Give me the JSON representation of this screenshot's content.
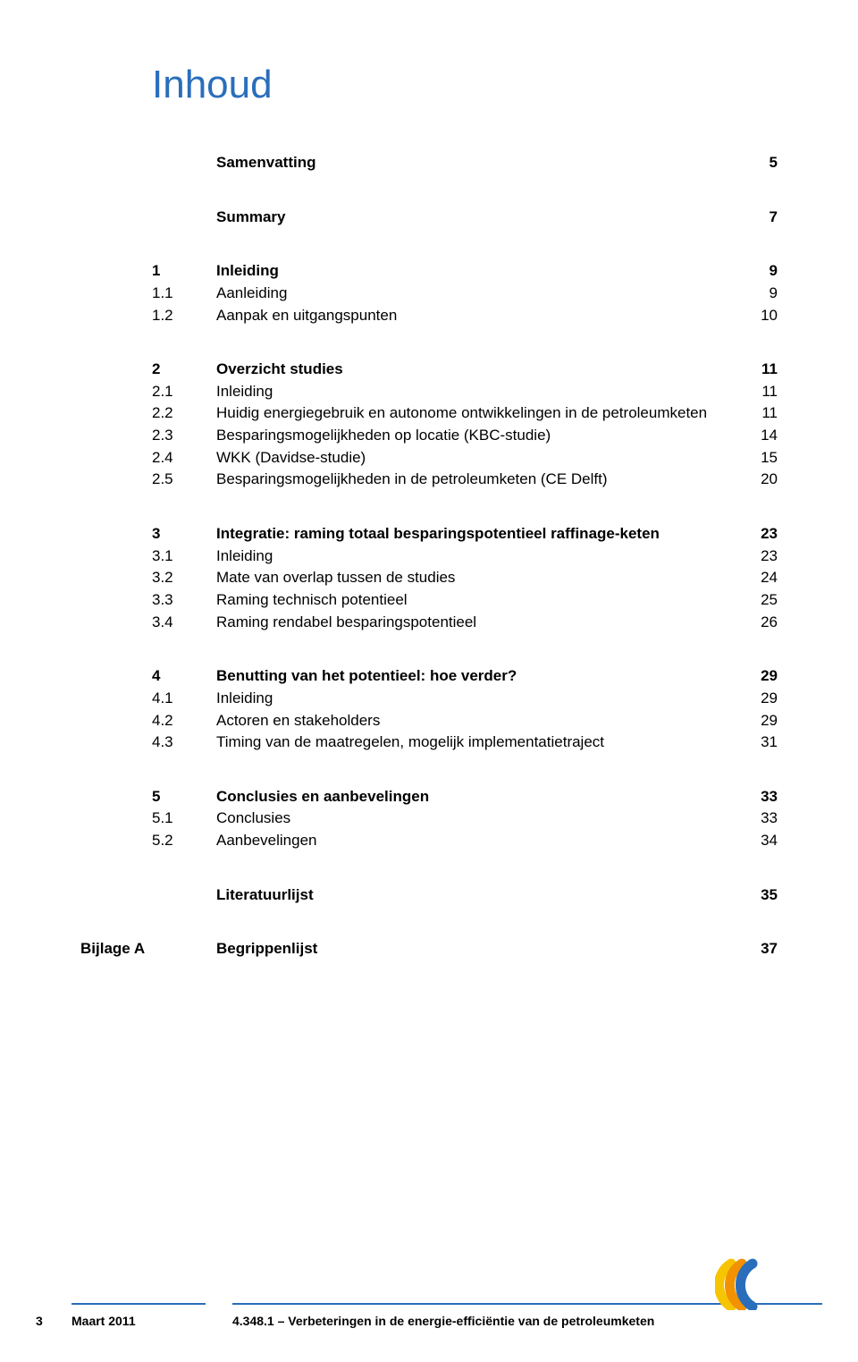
{
  "title": "Inhoud",
  "colors": {
    "accent": "#2a6ebb",
    "text": "#000000",
    "background": "#ffffff",
    "logo_yellow": "#f6c400",
    "logo_orange": "#f29200",
    "logo_blue": "#2a6ebb"
  },
  "toc": [
    {
      "type": "section",
      "entries": [
        {
          "num": "",
          "label": "Samenvatting",
          "page": "5",
          "bold": true
        }
      ]
    },
    {
      "type": "section",
      "entries": [
        {
          "num": "",
          "label": "Summary",
          "page": "7",
          "bold": true
        }
      ]
    },
    {
      "type": "section",
      "entries": [
        {
          "num": "1",
          "label": "Inleiding",
          "page": "9",
          "bold": true
        },
        {
          "num": "1.1",
          "label": "Aanleiding",
          "page": "9",
          "bold": false
        },
        {
          "num": "1.2",
          "label": "Aanpak en uitgangspunten",
          "page": "10",
          "bold": false
        }
      ]
    },
    {
      "type": "section",
      "entries": [
        {
          "num": "2",
          "label": "Overzicht studies",
          "page": "11",
          "bold": true
        },
        {
          "num": "2.1",
          "label": "Inleiding",
          "page": "11",
          "bold": false
        },
        {
          "num": "2.2",
          "label": "Huidig energiegebruik en autonome ontwikkelingen in de petroleumketen",
          "page": "11",
          "bold": false
        },
        {
          "num": "2.3",
          "label": "Besparingsmogelijkheden op locatie (KBC-studie)",
          "page": "14",
          "bold": false
        },
        {
          "num": "2.4",
          "label": "WKK (Davidse-studie)",
          "page": "15",
          "bold": false
        },
        {
          "num": "2.5",
          "label": "Besparingsmogelijkheden in de petroleumketen (CE Delft)",
          "page": "20",
          "bold": false
        }
      ]
    },
    {
      "type": "section",
      "entries": [
        {
          "num": "3",
          "label": "Integratie: raming totaal besparingspotentieel raffinage-keten",
          "page": "23",
          "bold": true
        },
        {
          "num": "3.1",
          "label": "Inleiding",
          "page": "23",
          "bold": false
        },
        {
          "num": "3.2",
          "label": "Mate van overlap tussen de studies",
          "page": "24",
          "bold": false
        },
        {
          "num": "3.3",
          "label": "Raming technisch potentieel",
          "page": "25",
          "bold": false
        },
        {
          "num": "3.4",
          "label": "Raming rendabel besparingspotentieel",
          "page": "26",
          "bold": false
        }
      ]
    },
    {
      "type": "section",
      "entries": [
        {
          "num": "4",
          "label": "Benutting van het potentieel: hoe verder?",
          "page": "29",
          "bold": true
        },
        {
          "num": "4.1",
          "label": "Inleiding",
          "page": "29",
          "bold": false
        },
        {
          "num": "4.2",
          "label": "Actoren en stakeholders",
          "page": "29",
          "bold": false
        },
        {
          "num": "4.3",
          "label": "Timing van de maatregelen, mogelijk implementatietraject",
          "page": "31",
          "bold": false
        }
      ]
    },
    {
      "type": "section",
      "entries": [
        {
          "num": "5",
          "label": "Conclusies en aanbevelingen",
          "page": "33",
          "bold": true
        },
        {
          "num": "5.1",
          "label": "Conclusies",
          "page": "33",
          "bold": false
        },
        {
          "num": "5.2",
          "label": "Aanbevelingen",
          "page": "34",
          "bold": false
        }
      ]
    },
    {
      "type": "section",
      "entries": [
        {
          "num": "",
          "label": "Literatuurlijst",
          "page": "35",
          "bold": true
        }
      ]
    }
  ],
  "appendix": {
    "prefix": "Bijlage A",
    "label": "Begrippenlijst",
    "page": "37"
  },
  "footer": {
    "page_num": "3",
    "date": "Maart 2011",
    "doc_title": "4.348.1 – Verbeteringen in de energie-efficiëntie van de petroleumketen"
  }
}
